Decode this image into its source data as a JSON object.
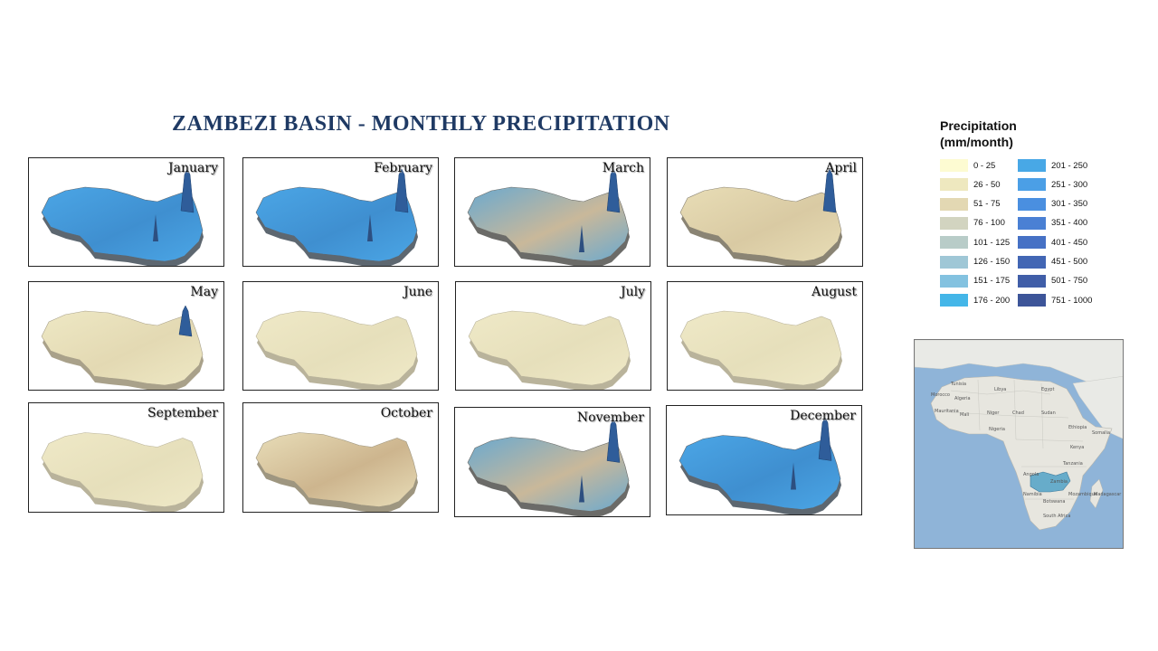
{
  "title": "ZAMBEZI BASIN - MONTHLY PRECIPITATION",
  "months": [
    {
      "name": "January",
      "level": "very_wet"
    },
    {
      "name": "February",
      "level": "very_wet"
    },
    {
      "name": "March",
      "level": "wet"
    },
    {
      "name": "April",
      "level": "dry_peak"
    },
    {
      "name": "May",
      "level": "dry_peak_small"
    },
    {
      "name": "June",
      "level": "dry"
    },
    {
      "name": "July",
      "level": "dry"
    },
    {
      "name": "August",
      "level": "dry"
    },
    {
      "name": "September",
      "level": "dry"
    },
    {
      "name": "October",
      "level": "light"
    },
    {
      "name": "November",
      "level": "wet"
    },
    {
      "name": "December",
      "level": "very_wet"
    }
  ],
  "legend": {
    "title": "Precipitation (mm/month)",
    "items": [
      {
        "label": "0 - 25",
        "color": "#fdfbd2"
      },
      {
        "label": "26 - 50",
        "color": "#eee8bf"
      },
      {
        "label": "51 - 75",
        "color": "#e3d8b3"
      },
      {
        "label": "76 - 100",
        "color": "#d2d4c0"
      },
      {
        "label": "101 - 125",
        "color": "#b8ccc8"
      },
      {
        "label": "126 - 150",
        "color": "#9fc7d6"
      },
      {
        "label": "151 - 175",
        "color": "#83c2e0"
      },
      {
        "label": "176 - 200",
        "color": "#44b6e8"
      },
      {
        "label": "201 - 250",
        "color": "#48a8e6"
      },
      {
        "label": "251 - 300",
        "color": "#4b9fe6"
      },
      {
        "label": "301 - 350",
        "color": "#4a8fe0"
      },
      {
        "label": "351 - 400",
        "color": "#4a80d4"
      },
      {
        "label": "401 - 450",
        "color": "#4671c5"
      },
      {
        "label": "451 - 500",
        "color": "#4266b4"
      },
      {
        "label": "501 - 750",
        "color": "#405ea8"
      },
      {
        "label": "751 - 1000",
        "color": "#3d5599"
      }
    ]
  },
  "inset_map": {
    "countries": [
      "Tunisia",
      "Morocco",
      "Algeria",
      "Libya",
      "Egypt",
      "Mauritania",
      "Mali",
      "Niger",
      "Chad",
      "Sudan",
      "Nigeria",
      "Ethiopia",
      "Somalia",
      "Kenya",
      "Tanzania",
      "Angola",
      "Zambia",
      "Namibia",
      "Botswana",
      "South Africa",
      "Madagascar",
      "Mozambique"
    ],
    "highlight": "Zambezi Basin"
  }
}
